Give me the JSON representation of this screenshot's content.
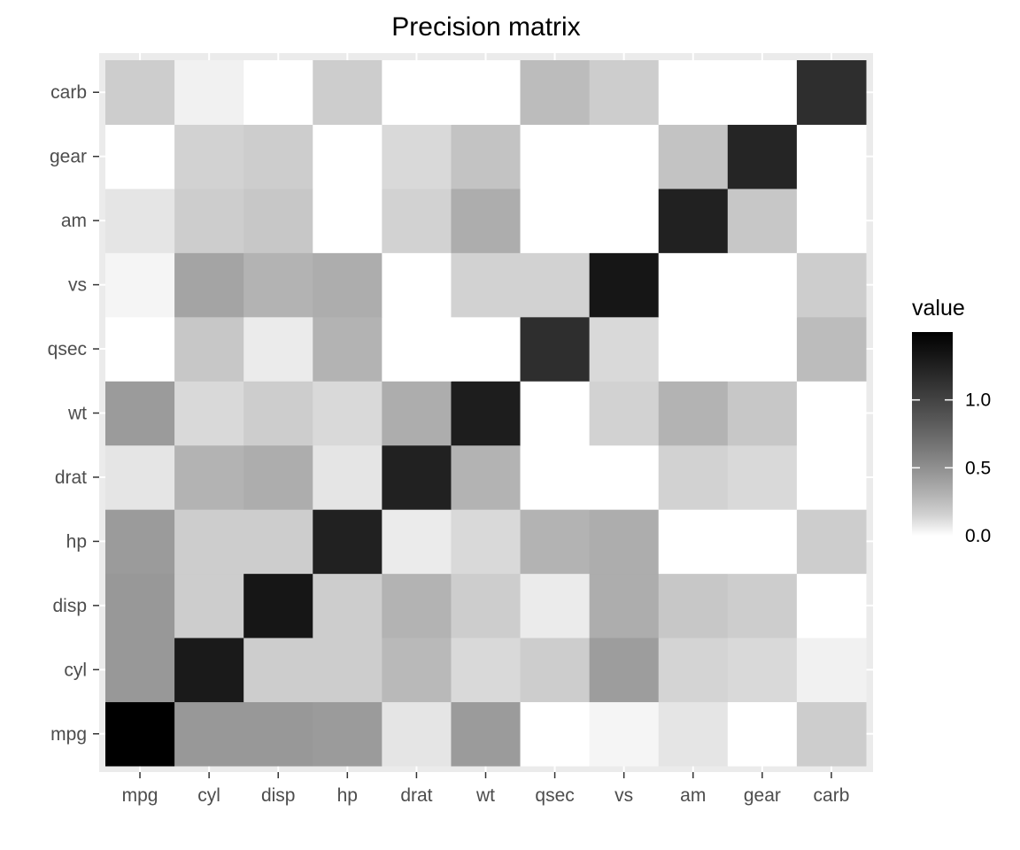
{
  "chart_data": {
    "type": "heatmap",
    "title": "Precision matrix",
    "xlabel": "",
    "ylabel": "",
    "x_categories": [
      "mpg",
      "cyl",
      "disp",
      "hp",
      "drat",
      "wt",
      "qsec",
      "vs",
      "am",
      "gear",
      "carb"
    ],
    "y_categories": [
      "mpg",
      "cyl",
      "disp",
      "hp",
      "drat",
      "wt",
      "qsec",
      "vs",
      "am",
      "gear",
      "carb"
    ],
    "values": [
      [
        1.5,
        0.45,
        0.45,
        0.43,
        0.07,
        0.43,
        0.0,
        0.02,
        0.07,
        0.0,
        0.17
      ],
      [
        0.45,
        1.3,
        0.17,
        0.17,
        0.27,
        0.12,
        0.17,
        0.42,
        0.14,
        0.12,
        0.03
      ],
      [
        0.45,
        0.17,
        1.33,
        0.17,
        0.3,
        0.17,
        0.05,
        0.33,
        0.2,
        0.17,
        0.0
      ],
      [
        0.43,
        0.17,
        0.17,
        1.25,
        0.05,
        0.12,
        0.3,
        0.33,
        0.0,
        0.0,
        0.17
      ],
      [
        0.07,
        0.3,
        0.33,
        0.07,
        1.25,
        0.3,
        0.0,
        0.0,
        0.15,
        0.12,
        0.0
      ],
      [
        0.43,
        0.12,
        0.17,
        0.12,
        0.33,
        1.28,
        0.0,
        0.15,
        0.3,
        0.2,
        0.0
      ],
      [
        0.0,
        0.2,
        0.05,
        0.3,
        0.0,
        0.0,
        1.15,
        0.12,
        0.0,
        0.0,
        0.25
      ],
      [
        0.02,
        0.38,
        0.3,
        0.33,
        0.0,
        0.15,
        0.15,
        1.33,
        0.0,
        0.0,
        0.17
      ],
      [
        0.07,
        0.17,
        0.2,
        0.0,
        0.15,
        0.33,
        0.0,
        0.0,
        1.25,
        0.2,
        0.0
      ],
      [
        0.0,
        0.15,
        0.17,
        0.0,
        0.12,
        0.22,
        0.0,
        0.0,
        0.22,
        1.22,
        0.0
      ],
      [
        0.17,
        0.03,
        0.0,
        0.17,
        0.0,
        0.0,
        0.25,
        0.17,
        0.0,
        0.0,
        1.15
      ]
    ],
    "legend": {
      "title": "value",
      "range": [
        0.0,
        1.5
      ],
      "ticks": [
        0.0,
        0.5,
        1.0
      ],
      "tick_labels": [
        "0.0",
        "0.5",
        "1.0"
      ],
      "low_color": "#ffffff",
      "high_color": "#000000",
      "placement": "right"
    },
    "panel_background": "#ebebeb",
    "grid": true
  }
}
